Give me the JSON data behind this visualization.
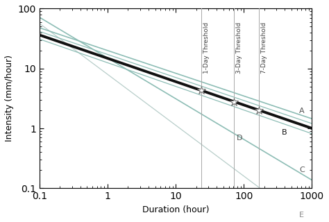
{
  "xlabel": "Duration (hour)",
  "ylabel": "Intensity (mm/hour)",
  "xlim": [
    0.1,
    1000
  ],
  "ylim": [
    0.1,
    100
  ],
  "threshold_lines": {
    "1day": 24,
    "3day": 72,
    "7day": 168
  },
  "line_B": {
    "alpha": 14.82,
    "beta": 0.39,
    "color": "#111111",
    "lw": 2.8
  },
  "line_A": {
    "color": "#8dbdb5",
    "lw": 1.2
  },
  "line_C": {
    "color": "#8dbdb5",
    "lw": 1.2
  },
  "line_E": {
    "color": "#b8ceca",
    "lw": 0.9
  },
  "line_upper_tight": {
    "color": "#8dbdb5",
    "lw": 0.9
  },
  "line_lower_tight": {
    "color": "#8dbdb5",
    "lw": 0.9
  },
  "bg_color": "#ffffff",
  "threshold_color": "#a8a8a8",
  "threshold_lw": 0.7,
  "label_fontsize": 8,
  "axis_fontsize": 9,
  "vline_text_fontsize": 6.5
}
